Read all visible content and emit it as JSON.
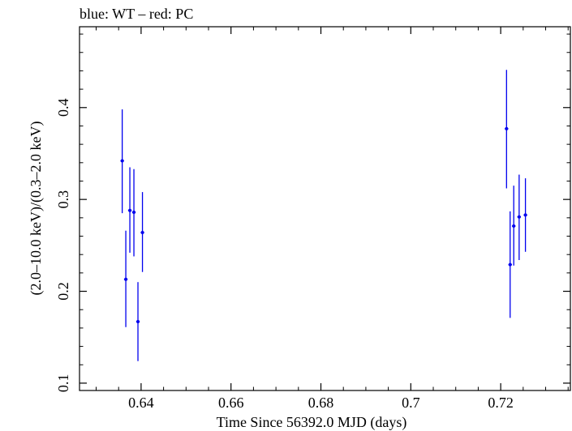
{
  "chart_data": {
    "type": "scatter",
    "title": "blue: WT – red: PC",
    "xlabel": "Time Since 56392.0 MJD (days)",
    "ylabel": "(2.0–10.0 keV)/(0.3–2.0 keV)",
    "xlim": [
      0.6263,
      0.7355
    ],
    "ylim": [
      0.092,
      0.488
    ],
    "xticks": [
      0.64,
      0.66,
      0.68,
      0.7,
      0.72
    ],
    "xtick_labels": [
      "0.64",
      "0.66",
      "0.68",
      "0.7",
      "0.72"
    ],
    "yticks": [
      0.1,
      0.2,
      0.3,
      0.4
    ],
    "ytick_labels": [
      "0.1",
      "0.2",
      "0.3",
      "0.4"
    ],
    "grid": false,
    "series": [
      {
        "name": "WT",
        "color": "#0000ee",
        "points": [
          {
            "x": 0.6358,
            "y": 0.342,
            "ylo": 0.285,
            "yhi": 0.398
          },
          {
            "x": 0.6366,
            "y": 0.213,
            "ylo": 0.161,
            "yhi": 0.266
          },
          {
            "x": 0.6375,
            "y": 0.288,
            "ylo": 0.242,
            "yhi": 0.335
          },
          {
            "x": 0.6384,
            "y": 0.286,
            "ylo": 0.238,
            "yhi": 0.333
          },
          {
            "x": 0.6393,
            "y": 0.167,
            "ylo": 0.124,
            "yhi": 0.21
          },
          {
            "x": 0.6403,
            "y": 0.264,
            "ylo": 0.221,
            "yhi": 0.308
          },
          {
            "x": 0.7213,
            "y": 0.377,
            "ylo": 0.312,
            "yhi": 0.441
          },
          {
            "x": 0.7221,
            "y": 0.229,
            "ylo": 0.171,
            "yhi": 0.287
          },
          {
            "x": 0.7229,
            "y": 0.271,
            "ylo": 0.228,
            "yhi": 0.315
          },
          {
            "x": 0.7241,
            "y": 0.281,
            "ylo": 0.234,
            "yhi": 0.327
          },
          {
            "x": 0.7255,
            "y": 0.283,
            "ylo": 0.243,
            "yhi": 0.323
          }
        ]
      }
    ]
  }
}
